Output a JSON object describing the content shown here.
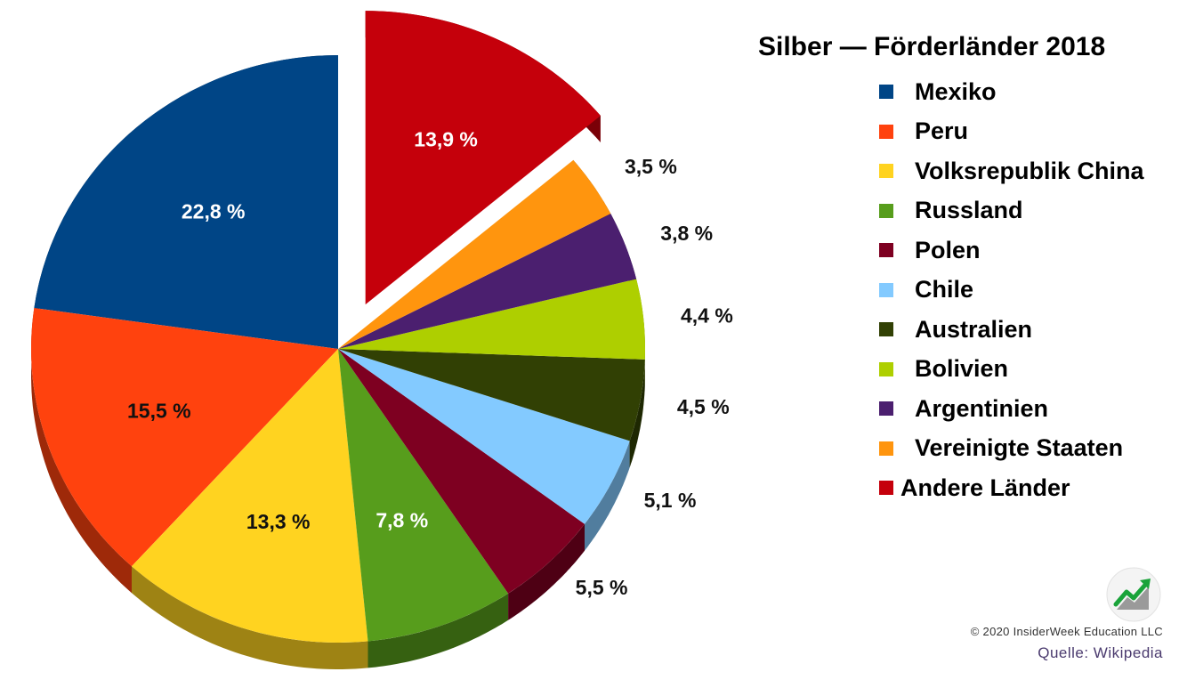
{
  "chart_data": {
    "type": "pie",
    "title": "Silber — Förderländer 2018",
    "legend_position": "right",
    "slices": [
      {
        "label": "Mexiko",
        "value": 22.8,
        "display": "22,8 %",
        "color": "#004586"
      },
      {
        "label": "Peru",
        "value": 15.5,
        "display": "15,5 %",
        "color": "#ff420e"
      },
      {
        "label": "Volksrepublik China",
        "value": 13.3,
        "display": "13,3 %",
        "color": "#ffd320"
      },
      {
        "label": "Russland",
        "value": 7.8,
        "display": "7,8 %",
        "color": "#579d1c"
      },
      {
        "label": "Polen",
        "value": 5.5,
        "display": "5,5 %",
        "color": "#7e0021"
      },
      {
        "label": "Chile",
        "value": 5.1,
        "display": "5,1 %",
        "color": "#83caff"
      },
      {
        "label": "Australien",
        "value": 4.5,
        "display": "4,5 %",
        "color": "#314004"
      },
      {
        "label": "Bolivien",
        "value": 4.4,
        "display": "4,4 %",
        "color": "#aecf00"
      },
      {
        "label": "Argentinien",
        "value": 3.8,
        "display": "3,8 %",
        "color": "#4b1f6f"
      },
      {
        "label": "Vereinigte Staaten",
        "value": 3.5,
        "display": "3,5 %",
        "color": "#ff950e"
      },
      {
        "label": "Andere Länder",
        "value": 13.9,
        "display": "13,9 %",
        "color": "#c5000b",
        "exploded": true
      }
    ]
  },
  "footer": {
    "copyright": "© 2020 InsiderWeek Education LLC",
    "source": "Quelle: Wikipedia"
  },
  "logo_icon": "rising-chart-icon"
}
